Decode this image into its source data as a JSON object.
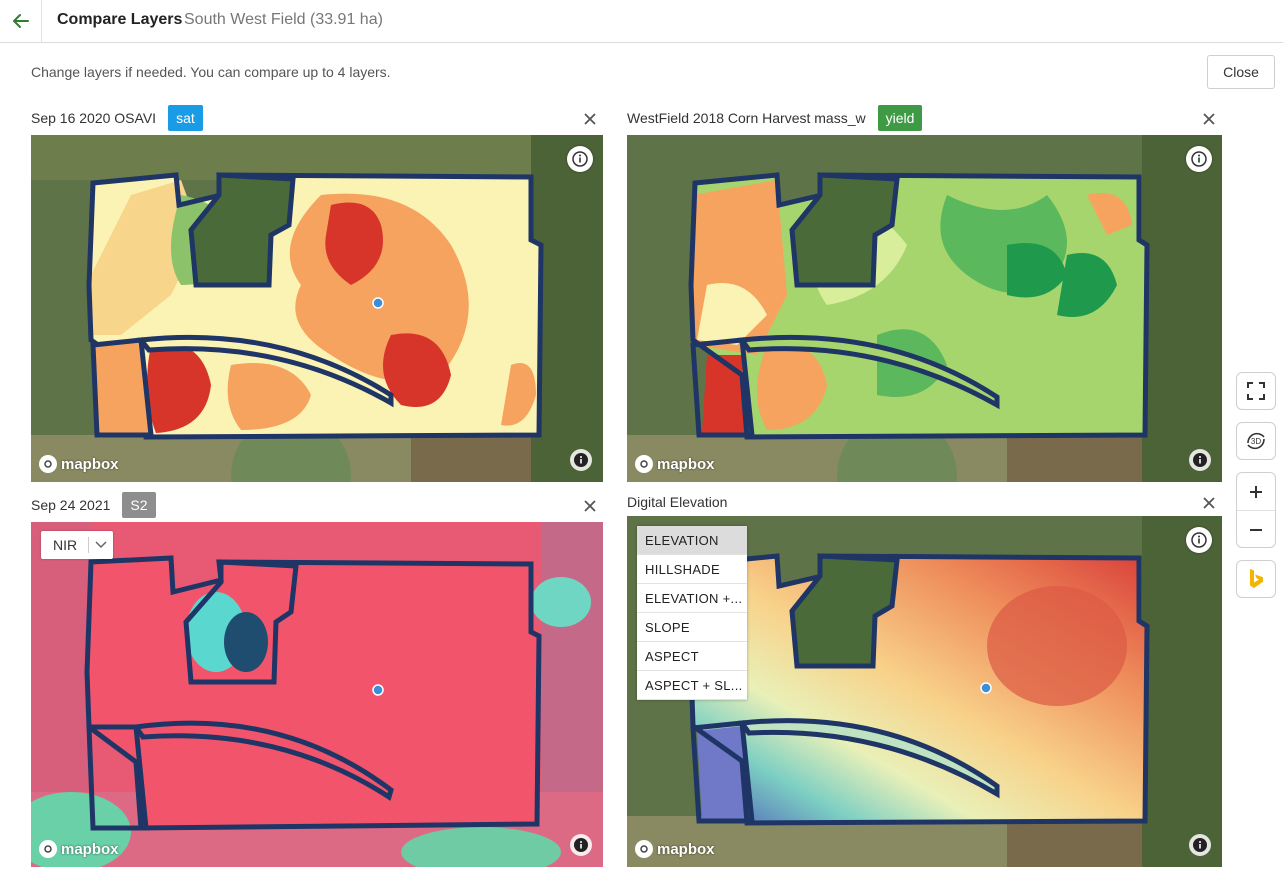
{
  "header": {
    "title": "Compare Layers",
    "subtitle": "South West Field (33.91 ha)"
  },
  "hint": "Change layers if needed. You can compare up to 4 layers.",
  "close_label": "Close",
  "panels": [
    {
      "title": "Sep 16 2020 OSAVI",
      "badge": "sat",
      "badge_color": "#1a9be6"
    },
    {
      "title": "WestField 2018 Corn Harvest mass_w",
      "badge": "yield",
      "badge_color": "#3f9a46"
    },
    {
      "title": "Sep 24 2021",
      "badge": "S2",
      "badge_color": "#8e8e8e",
      "band_select": "NIR"
    },
    {
      "title": "Digital Elevation",
      "layer_options": [
        "ELEVATION",
        "HILLSHADE",
        "ELEVATION +...",
        "SLOPE",
        "ASPECT",
        "ASPECT + SL..."
      ],
      "selected_option": "ELEVATION"
    }
  ],
  "map_attribution": "mapbox",
  "side_controls": {
    "fit_icon": "fullscreen-fit-icon",
    "tilt_label": "3D",
    "zoom_in": "+",
    "zoom_out": "−",
    "bing_icon": "bing-icon"
  },
  "colors": {
    "field_outline": "#1e3566",
    "marker": "#3a8fd8",
    "osavi_low": "#d7352a",
    "osavi_mid": "#f5a35f",
    "osavi_high": "#fbf3b4",
    "yield_high": "#1f9a4d",
    "yield_mid": "#a6d56e",
    "nir_field": "#f2556b",
    "elevation_low": "#4b56b7",
    "elevation_high": "#d9403a"
  }
}
